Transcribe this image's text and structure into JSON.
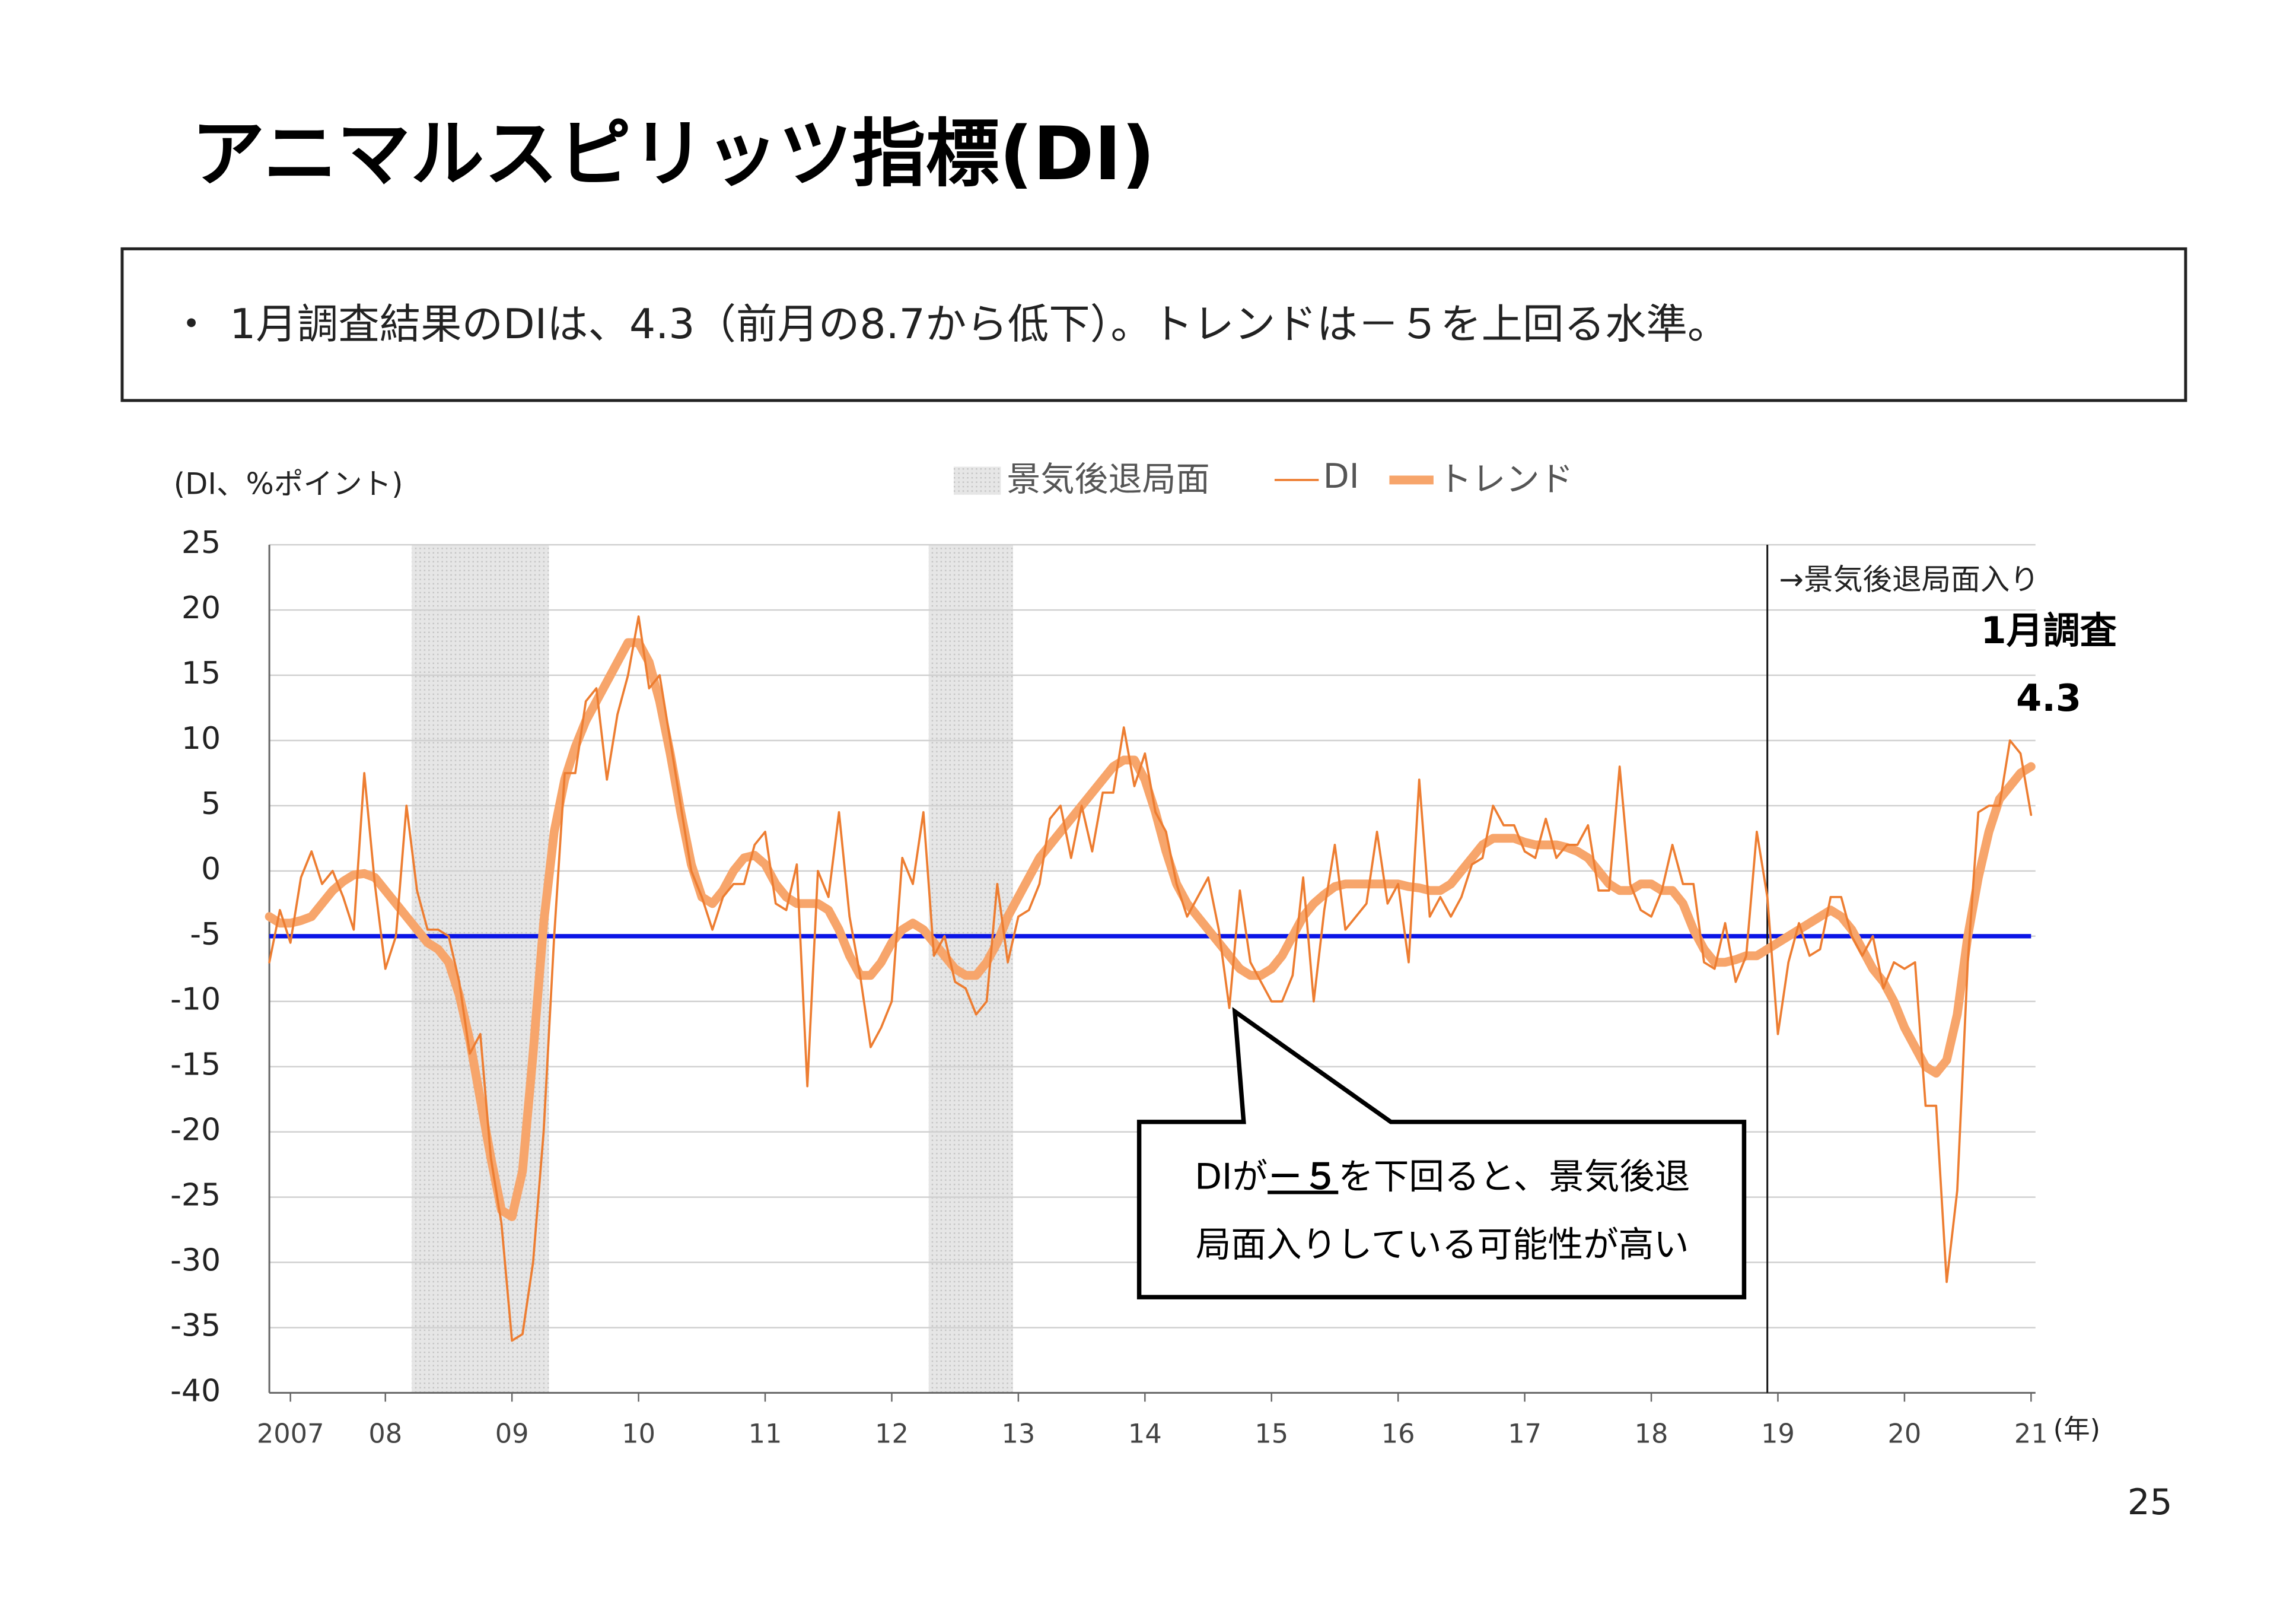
{
  "title": "アニマルスピリッツ指標(DI)",
  "summary": {
    "bullet": "・",
    "text": "1月調査結果のDIは、4.3（前月の8.7から低下）。トレンドは－５を上回る水準。"
  },
  "page_number": "25",
  "chart_data": {
    "type": "line",
    "y_axis_label": "(DI、%ポイント)",
    "x_axis_label": "(年)",
    "categories": [
      null,
      null,
      "2007",
      null,
      null,
      null,
      null,
      null,
      null,
      null,
      null,
      "08",
      null,
      null,
      null,
      null,
      null,
      null,
      null,
      null,
      null,
      null,
      null,
      "09",
      null,
      null,
      null,
      null,
      null,
      null,
      null,
      null,
      null,
      null,
      null,
      "10",
      null,
      null,
      null,
      null,
      null,
      null,
      null,
      null,
      null,
      null,
      null,
      "11",
      null,
      null,
      null,
      null,
      null,
      null,
      null,
      null,
      null,
      null,
      null,
      "12",
      null,
      null,
      null,
      null,
      null,
      null,
      null,
      null,
      null,
      null,
      null,
      "13",
      null,
      null,
      null,
      null,
      null,
      null,
      null,
      null,
      null,
      null,
      null,
      "14",
      null,
      null,
      null,
      null,
      null,
      null,
      null,
      null,
      null,
      null,
      null,
      "15",
      null,
      null,
      null,
      null,
      null,
      null,
      null,
      null,
      null,
      null,
      null,
      "16",
      null,
      null,
      null,
      null,
      null,
      null,
      null,
      null,
      null,
      null,
      null,
      "17",
      null,
      null,
      null,
      null,
      null,
      null,
      null,
      null,
      null,
      null,
      null,
      "18",
      null,
      null,
      null,
      null,
      null,
      null,
      null,
      null,
      null,
      null,
      null,
      "19",
      null,
      null,
      null,
      null,
      null,
      null,
      null,
      null,
      null,
      null,
      null,
      "20",
      null,
      null,
      null,
      null,
      null,
      null,
      null,
      null,
      null,
      null,
      null,
      "21"
    ],
    "series": [
      {
        "name": "DI",
        "color": "#ed7d31",
        "width": 1.5,
        "values": [
          -7,
          -3,
          -5.5,
          -0.5,
          1.5,
          -1,
          0,
          -2,
          -4.5,
          7.5,
          -1,
          -7.5,
          -5,
          5,
          -1.5,
          -4.5,
          -4.5,
          -5,
          -8.5,
          -14,
          -12.5,
          -22,
          -27,
          -36,
          -35.5,
          -30,
          -20,
          -5,
          7.5,
          7.5,
          13,
          14,
          7,
          12,
          15,
          19.5,
          14,
          15,
          10,
          5,
          0,
          -2,
          -4.5,
          -2,
          -1,
          -1,
          2,
          3,
          -2.5,
          -3,
          0.5,
          -16.5,
          0,
          -2,
          4.5,
          -3.5,
          -8,
          -13.5,
          -12,
          -10,
          1,
          -1,
          4.5,
          -6.5,
          -5,
          -8.5,
          -9,
          -11,
          -10,
          -1,
          -7,
          -3.5,
          -3,
          -1,
          4,
          5,
          1,
          5,
          1.5,
          6,
          6,
          11,
          6.5,
          9,
          4.5,
          3,
          -1,
          -3.5,
          -2,
          -0.5,
          -4.5,
          -10.5,
          -1.5,
          -7,
          -8.5,
          -10,
          -10,
          -8,
          -0.5,
          -10,
          -3,
          2,
          -4.5,
          -3.5,
          -2.5,
          3,
          -2.5,
          -1,
          -7,
          7,
          -3.5,
          -2,
          -3.5,
          -2,
          0.5,
          1,
          5,
          3.5,
          3.5,
          1.5,
          1,
          4,
          1,
          2,
          2,
          3.5,
          -1.5,
          -1.5,
          8,
          -1,
          -3,
          -3.5,
          -1.5,
          2,
          -1,
          -1,
          -7,
          -7.5,
          -4,
          -8.5,
          -6.5,
          3,
          -2,
          -12.5,
          -7,
          -4,
          -6.5,
          -6,
          -2,
          -2,
          -5,
          -6.5,
          -5,
          -9,
          -7,
          -7.5,
          -7,
          -18,
          -18,
          -31.5,
          -24.5,
          -7,
          4.5,
          5,
          5,
          10,
          9,
          4.3
        ]
      },
      {
        "name": "トレンド",
        "color": "#f7a56b",
        "width": 6,
        "values": [
          -3.5,
          -4,
          -4,
          -3.8,
          -3.5,
          -2.5,
          -1.5,
          -0.8,
          -0.3,
          -0.2,
          -0.5,
          -1.5,
          -2.5,
          -3.5,
          -4.5,
          -5.5,
          -6,
          -7,
          -9.5,
          -13,
          -17.5,
          -22,
          -26,
          -26.5,
          -23,
          -14,
          -4,
          3,
          7,
          9.5,
          11.5,
          13,
          14.5,
          16,
          17.5,
          17.5,
          16,
          13,
          9,
          4.5,
          0.5,
          -2,
          -2.5,
          -1.5,
          0,
          1,
          1.2,
          0.5,
          -1,
          -2,
          -2.5,
          -2.5,
          -2.5,
          -3,
          -4.5,
          -6.5,
          -8,
          -8,
          -7,
          -5.5,
          -4.5,
          -4,
          -4.5,
          -5.5,
          -6.5,
          -7.5,
          -8,
          -8,
          -7,
          -5.5,
          -3.5,
          -2,
          -0.5,
          1,
          2,
          3,
          4,
          5,
          6,
          7,
          8,
          8.5,
          8.5,
          7,
          4.5,
          1.5,
          -1,
          -2.5,
          -3.5,
          -4.5,
          -5.5,
          -6.5,
          -7.5,
          -8,
          -8,
          -7.5,
          -6.5,
          -5,
          -3.5,
          -2.5,
          -1.8,
          -1.2,
          -1,
          -1,
          -1,
          -1,
          -1,
          -1,
          -1.2,
          -1.3,
          -1.5,
          -1.5,
          -1,
          0,
          1,
          2,
          2.5,
          2.5,
          2.5,
          2.2,
          2,
          2,
          2,
          1.8,
          1.5,
          1,
          0,
          -1,
          -1.5,
          -1.5,
          -1,
          -1,
          -1.5,
          -1.5,
          -2.5,
          -4.5,
          -6,
          -7,
          -7,
          -6.8,
          -6.5,
          -6.5,
          -6,
          -5.5,
          -5,
          -4.5,
          -4,
          -3.5,
          -3,
          -3.5,
          -4.5,
          -6,
          -7.5,
          -8.5,
          -10,
          -12,
          -13.5,
          -15,
          -15.5,
          -14.5,
          -11,
          -5,
          -0.5,
          3,
          5.5,
          6.5,
          7.5,
          8
        ]
      }
    ],
    "recession_name": "景気後退局面",
    "recession_color": "#d9d9d9",
    "recession_spans": [
      [
        14,
        26
      ],
      [
        63,
        70
      ]
    ],
    "threshold": -5,
    "threshold_color": "#0a14e6",
    "marker_index": 142,
    "marker_label": "→景気後退局面入り",
    "latest_label": "1月調査",
    "ylim": [
      -40,
      25
    ],
    "yticks": [
      -40,
      -35,
      -30,
      -25,
      -20,
      -15,
      -10,
      -5,
      0,
      5,
      10,
      15,
      20,
      25
    ],
    "grid": true,
    "callout": {
      "prefix": "DIが",
      "emphasis": "－５",
      "line1_rest": "を下回ると、景気後退",
      "line2": "局面入りしている可能性が高い"
    }
  }
}
